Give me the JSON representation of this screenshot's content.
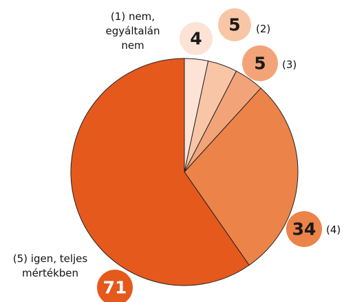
{
  "chart_data": {
    "type": "pie",
    "categories": [
      "(1) nem, egyáltalán nem",
      "(2)",
      "(3)",
      "(4)",
      "(5) igen, teljes mértékben"
    ],
    "values": [
      4,
      5,
      5,
      34,
      71
    ],
    "colors": [
      "#fce3d6",
      "#f8c6a6",
      "#f2a478",
      "#ec8349",
      "#e5591c"
    ],
    "value_label_colors": [
      "#1a1a1a",
      "#1a1a1a",
      "#1a1a1a",
      "#1a1a1a",
      "#ffffff"
    ]
  }
}
